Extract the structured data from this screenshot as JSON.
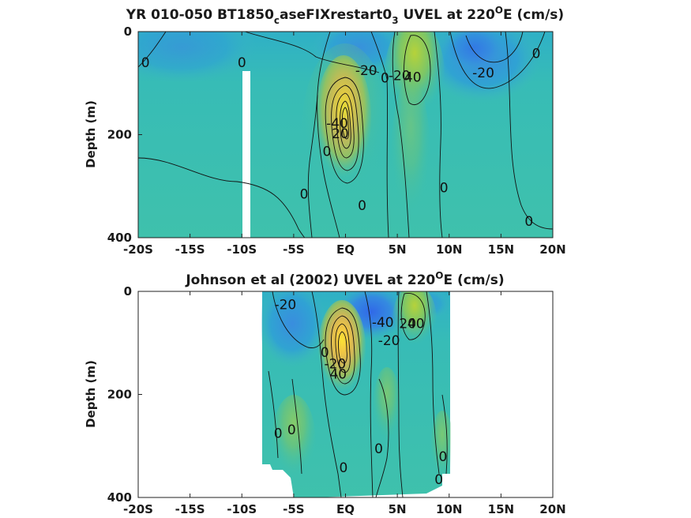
{
  "chart_data": [
    {
      "type": "heatmap",
      "title": "YR 010-050 BT1850",
      "title_sub1": "c",
      "title_mid": "aseFIXrestart0",
      "title_sub2": "3",
      "title_tail": " UVEL at 220",
      "title_sup": "O",
      "title_end": "E (cm/s)",
      "ylabel": "Depth (m)",
      "xlim": [
        -20,
        20
      ],
      "ylim": [
        0,
        400
      ],
      "x_ticks": [
        -20,
        -15,
        -10,
        -5,
        0,
        5,
        10,
        15,
        20
      ],
      "x_tick_labels": [
        "-20S",
        "-15S",
        "-10S",
        "-5S",
        "EQ",
        "5N",
        "10N",
        "15N",
        "20N"
      ],
      "y_ticks": [
        0,
        200,
        400
      ],
      "y_tick_labels": [
        "0",
        "200",
        "400"
      ],
      "contour_labels": [
        {
          "text": "0",
          "x": -19.3,
          "y": 60
        },
        {
          "text": "0",
          "x": -10,
          "y": 60
        },
        {
          "text": "-20",
          "x": 2,
          "y": 75
        },
        {
          "text": "0",
          "x": 3.8,
          "y": 90
        },
        {
          "text": "-20",
          "x": 5.2,
          "y": 85
        },
        {
          "text": "40",
          "x": 6.5,
          "y": 88
        },
        {
          "text": "-20",
          "x": 13.3,
          "y": 80
        },
        {
          "text": "0",
          "x": 18.4,
          "y": 42
        },
        {
          "text": "-40",
          "x": -0.8,
          "y": 178
        },
        {
          "text": "20",
          "x": -0.5,
          "y": 198
        },
        {
          "text": "0",
          "x": -1.8,
          "y": 232
        },
        {
          "text": "0",
          "x": -4,
          "y": 315
        },
        {
          "text": "0",
          "x": 1.6,
          "y": 337
        },
        {
          "text": "0",
          "x": 9.5,
          "y": 303
        },
        {
          "text": "0",
          "x": 17.7,
          "y": 368
        }
      ],
      "colors": {
        "background": "#3ec1ae",
        "jet_core": "#f9e130",
        "negative_band": "#3c8fe0",
        "mask": "#ffffff"
      }
    },
    {
      "type": "heatmap",
      "title": "Johnson et al (2002) UVEL at 220",
      "title_sup": "O",
      "title_end": "E (cm/s)",
      "ylabel": "Depth (m)",
      "xlim": [
        -20,
        20
      ],
      "ylim": [
        0,
        400
      ],
      "x_ticks": [
        -20,
        -15,
        -10,
        -5,
        0,
        5,
        10,
        15,
        20
      ],
      "x_tick_labels": [
        "-20S",
        "-15S",
        "-10S",
        "-5S",
        "EQ",
        "5N",
        "10N",
        "15N",
        "20N"
      ],
      "y_ticks": [
        0,
        200,
        400
      ],
      "y_tick_labels": [
        "0",
        "200",
        "400"
      ],
      "contour_labels": [
        {
          "text": "-20",
          "x": -5.8,
          "y": 25
        },
        {
          "text": "0",
          "x": -2,
          "y": 118
        },
        {
          "text": "-20",
          "x": -1,
          "y": 140
        },
        {
          "text": "40",
          "x": -0.7,
          "y": 160
        },
        {
          "text": "-40",
          "x": 3.6,
          "y": 60
        },
        {
          "text": "-20",
          "x": 4.2,
          "y": 95
        },
        {
          "text": "20",
          "x": 6,
          "y": 62
        },
        {
          "text": "40",
          "x": 6.8,
          "y": 62
        },
        {
          "text": "0",
          "x": -6.5,
          "y": 275
        },
        {
          "text": "0",
          "x": -5.2,
          "y": 268
        },
        {
          "text": "0",
          "x": 3.2,
          "y": 305
        },
        {
          "text": "0",
          "x": -0.2,
          "y": 342
        },
        {
          "text": "0",
          "x": 9.4,
          "y": 320
        },
        {
          "text": "0",
          "x": 9,
          "y": 365
        }
      ],
      "colors": {
        "background": "#3ec1ae",
        "jet_core": "#f9e130",
        "negative_band": "#3c8fe0",
        "mask": "#ffffff"
      }
    }
  ]
}
